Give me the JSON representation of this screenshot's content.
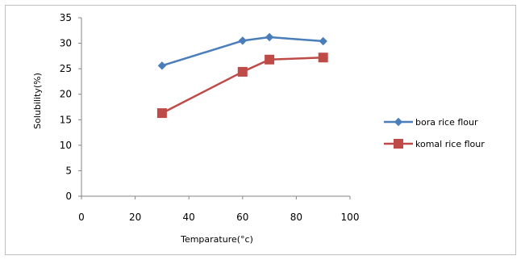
{
  "chart_data": {
    "type": "line",
    "title": "",
    "xlabel": "Temparature(°c)",
    "ylabel": "Solubility(%)",
    "xlim": [
      0,
      100
    ],
    "ylim": [
      0,
      35
    ],
    "xticks": [
      "0",
      "20",
      "40",
      "60",
      "80",
      "100"
    ],
    "yticks": [
      "0",
      "5",
      "10",
      "15",
      "20",
      "25",
      "30",
      "35"
    ],
    "grid": false,
    "legend_position": "right",
    "series": [
      {
        "name": "bora rice flour",
        "color": "#4a7ebb",
        "marker": "diamond",
        "x": [
          30,
          60,
          70,
          90
        ],
        "y": [
          25.6,
          30.5,
          31.2,
          30.4
        ]
      },
      {
        "name": "komal rice flour",
        "color": "#be4b48",
        "marker": "square",
        "x": [
          30,
          60,
          70,
          90
        ],
        "y": [
          16.3,
          24.4,
          26.8,
          27.2
        ]
      }
    ]
  }
}
